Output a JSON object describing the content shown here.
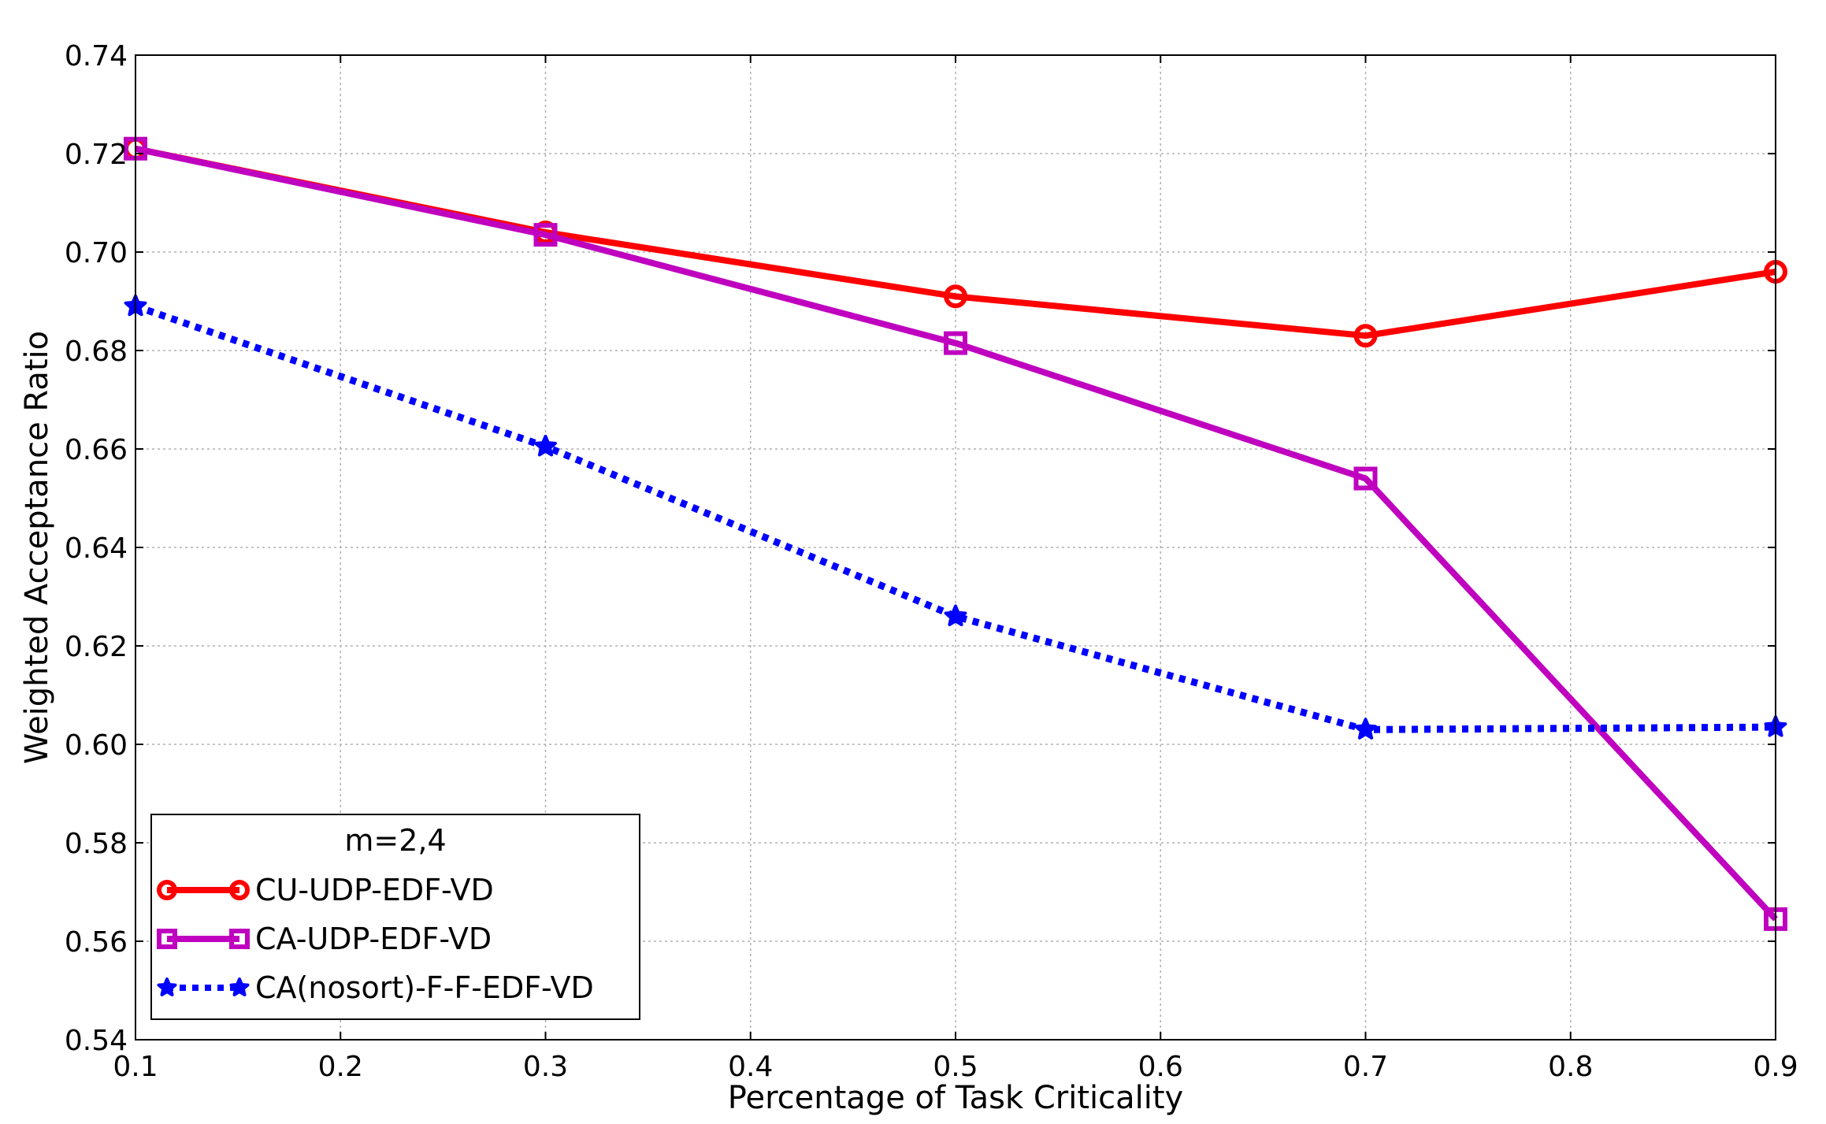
{
  "chart_data": {
    "type": "line",
    "xlabel": "Percentage of Task Criticality",
    "ylabel": "Weighted Acceptance Ratio",
    "xlim": [
      0.1,
      0.9
    ],
    "ylim": [
      0.54,
      0.74
    ],
    "x_ticks": [
      "0.1",
      "0.2",
      "0.3",
      "0.4",
      "0.5",
      "0.6",
      "0.7",
      "0.8",
      "0.9"
    ],
    "y_ticks": [
      "0.54",
      "0.56",
      "0.58",
      "0.60",
      "0.62",
      "0.64",
      "0.66",
      "0.68",
      "0.70",
      "0.72",
      "0.74"
    ],
    "grid": true,
    "legend": {
      "title": "m=2,4",
      "placement": "lower-left"
    },
    "x": [
      0.1,
      0.3,
      0.5,
      0.7,
      0.9
    ],
    "series": [
      {
        "name": "CU-UDP-EDF-VD",
        "color": "#ff0000",
        "marker": "circle",
        "linestyle": "solid",
        "values": [
          0.721,
          0.704,
          0.691,
          0.683,
          0.696
        ]
      },
      {
        "name": "CA-UDP-EDF-VD",
        "color": "#bf00bf",
        "marker": "square",
        "linestyle": "solid",
        "values": [
          0.721,
          0.7035,
          0.6815,
          0.654,
          0.5645
        ]
      },
      {
        "name": "CA(nosort)-F-F-EDF-VD",
        "color": "#0000ff",
        "marker": "star",
        "linestyle": "dotted",
        "values": [
          0.689,
          0.6605,
          0.626,
          0.603,
          0.6035
        ]
      }
    ]
  }
}
